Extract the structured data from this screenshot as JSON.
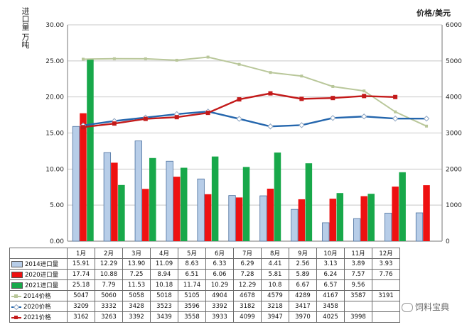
{
  "left_axis_title": "进口量 万吨",
  "right_axis_title": "价格/美元",
  "watermark": "饲料宝典",
  "colors": {
    "s2014": "#b7cde8",
    "s2014_border": "#4a6f9e",
    "s2020": "#ee1111",
    "s2021": "#18a84a",
    "p2014": "#b9c79a",
    "p2020": "#2466ad",
    "p2021": "#c31a1a",
    "grid": "#c8c8c8"
  },
  "chart_data": {
    "type": "bar",
    "categories": [
      "1月",
      "2月",
      "3月",
      "4月",
      "5月",
      "6月",
      "7月",
      "8月",
      "9月",
      "10月",
      "11月",
      "12月"
    ],
    "y_left": {
      "min": 0,
      "max": 30,
      "step": 5,
      "ticks": [
        "0.00",
        "5.00",
        "10.00",
        "15.00",
        "20.00",
        "25.00",
        "30.00"
      ]
    },
    "y_right": {
      "min": 0,
      "max": 6000,
      "step": 1000,
      "ticks": [
        "0",
        "1000",
        "2000",
        "3000",
        "4000",
        "5000",
        "6000"
      ]
    },
    "grid": true,
    "series": [
      {
        "name": "2014进口量",
        "kind": "bar",
        "axis": "left",
        "color": "#b7cde8",
        "values": [
          15.91,
          12.29,
          13.9,
          11.09,
          8.63,
          6.33,
          6.29,
          4.41,
          2.56,
          3.13,
          3.89,
          3.93
        ],
        "labels": [
          "15.91",
          "12.29",
          "13.90",
          "11.09",
          "8.63",
          "6.33",
          "6.29",
          "4.41",
          "2.56",
          "3.13",
          "3.89",
          "3.93"
        ]
      },
      {
        "name": "2020进口量",
        "kind": "bar",
        "axis": "left",
        "color": "#ee1111",
        "values": [
          17.74,
          10.88,
          7.25,
          8.94,
          6.51,
          6.06,
          7.28,
          5.81,
          5.89,
          6.24,
          7.57,
          7.76
        ],
        "labels": [
          "17.74",
          "10.88",
          "7.25",
          "8.94",
          "6.51",
          "6.06",
          "7.28",
          "5.81",
          "5.89",
          "6.24",
          "7.57",
          "7.76"
        ]
      },
      {
        "name": "2021进口量",
        "kind": "bar",
        "axis": "left",
        "color": "#18a84a",
        "values": [
          25.18,
          7.79,
          11.53,
          10.18,
          11.74,
          10.29,
          12.29,
          10.8,
          6.67,
          6.57,
          9.56,
          null
        ],
        "labels": [
          "25.18",
          "7.79",
          "11.53",
          "10.18",
          "11.74",
          "10.29",
          "12.29",
          "10.8",
          "6.67",
          "6.57",
          "9.56",
          ""
        ]
      },
      {
        "name": "2014价格",
        "kind": "line",
        "axis": "right",
        "color": "#b9c79a",
        "values": [
          5047,
          5060,
          5058,
          5018,
          5105,
          4904,
          4678,
          4579,
          4289,
          4167,
          3587,
          3191
        ],
        "labels": [
          "5047",
          "5060",
          "5058",
          "5018",
          "5105",
          "4904",
          "4678",
          "4579",
          "4289",
          "4167",
          "3587",
          "3191"
        ]
      },
      {
        "name": "2020价格",
        "kind": "line",
        "axis": "right",
        "color": "#2466ad",
        "values": [
          3209,
          3332,
          3428,
          3523,
          3596,
          3392,
          3182,
          3218,
          3417,
          3458,
          3400,
          3400
        ],
        "labels": [
          "3209",
          "3332",
          "3428",
          "3523",
          "3596",
          "3392",
          "3182",
          "3218",
          "3417",
          "3458",
          "",
          ""
        ]
      },
      {
        "name": "2021价格",
        "kind": "line",
        "axis": "right",
        "color": "#c31a1a",
        "values": [
          3162,
          3263,
          3392,
          3439,
          3558,
          3933,
          4099,
          3947,
          3970,
          4025,
          3998,
          null
        ],
        "labels": [
          "3162",
          "3263",
          "3392",
          "3439",
          "3558",
          "3933",
          "4099",
          "3947",
          "3970",
          "4025",
          "3998",
          ""
        ]
      }
    ]
  }
}
